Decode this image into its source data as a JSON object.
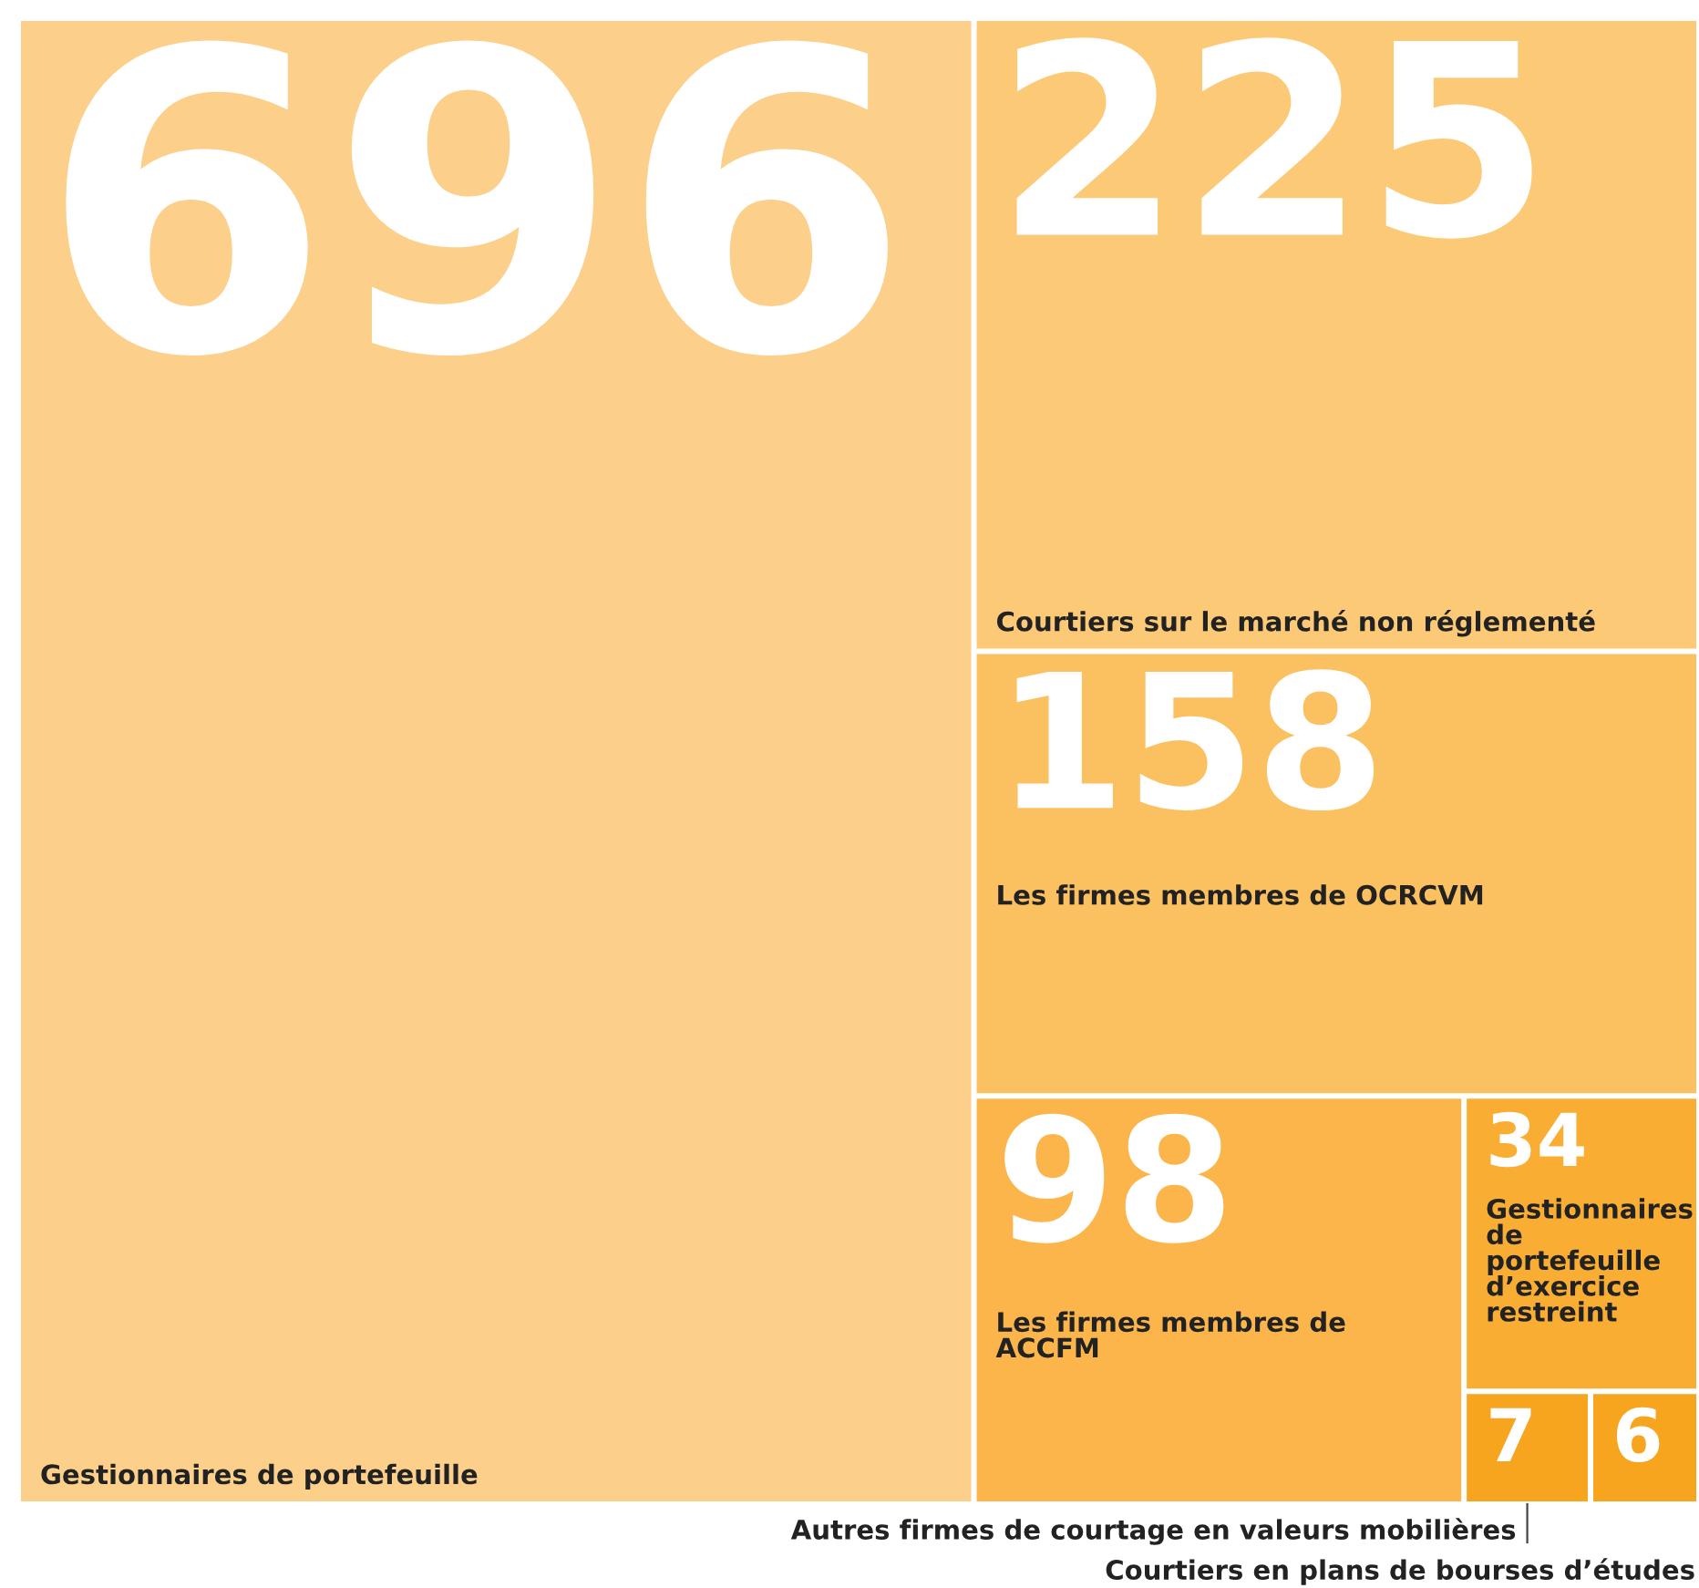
{
  "chart_data": {
    "type": "other",
    "categories": [
      "Gestionnaires de portefeuille",
      "Courtiers sur le marché non réglementé",
      "Les firmes membres de OCRCVM",
      "Les firmes membres de ACCFM",
      "Gestionnaires de portefeuille d’exercice restreint",
      "Autres firmes de courtage en valeurs mobilières",
      "Courtiers en plans de bourses d’études"
    ],
    "values": [
      696,
      225,
      158,
      98,
      34,
      7,
      6
    ],
    "colors": [
      "#fcd08a",
      "#fcc977",
      "#fbc060",
      "#fbb54a",
      "#f9ae33",
      "#f7a51f",
      "#f7a51f"
    ],
    "data_labels": true
  }
}
